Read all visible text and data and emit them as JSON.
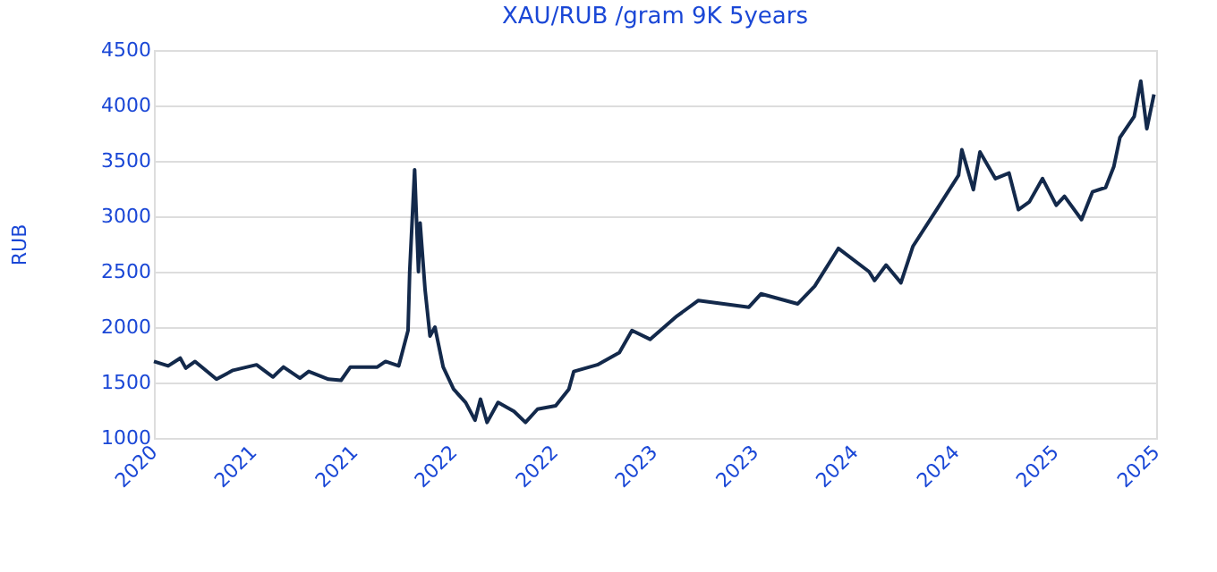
{
  "chart_data": {
    "type": "line",
    "title": "XAU/RUB /gram 9K 5years",
    "ylabel": "RUB",
    "x": [
      "2020-11-01",
      "2020-11-27",
      "2020-12-19",
      "2020-12-29",
      "2021-01-15",
      "2021-02-23",
      "2021-03-25",
      "2021-05-07",
      "2021-06-06",
      "2021-06-25",
      "2021-07-25",
      "2021-08-10",
      "2021-09-15",
      "2021-10-08",
      "2021-10-25",
      "2021-12-13",
      "2021-12-28",
      "2022-01-21",
      "2022-02-07",
      "2022-02-10",
      "2022-02-19",
      "2022-02-26",
      "2022-03-01",
      "2022-03-10",
      "2022-03-19",
      "2022-03-28",
      "2022-04-12",
      "2022-05-01",
      "2022-05-23",
      "2022-06-09",
      "2022-06-19",
      "2022-07-01",
      "2022-07-21",
      "2022-08-19",
      "2022-09-09",
      "2022-10-01",
      "2022-11-03",
      "2022-11-27",
      "2022-12-06",
      "2023-01-18",
      "2023-02-27",
      "2023-03-22",
      "2023-04-24",
      "2023-06-12",
      "2023-07-21",
      "2023-10-21",
      "2023-11-12",
      "2024-01-18",
      "2024-02-18",
      "2024-04-01",
      "2024-05-27",
      "2024-06-06",
      "2024-06-27",
      "2024-07-24",
      "2024-08-15",
      "2024-09-27",
      "2024-11-06",
      "2024-11-12",
      "2024-12-03",
      "2024-12-15",
      "2025-01-12",
      "2025-02-06",
      "2025-02-23",
      "2025-03-15",
      "2025-04-08",
      "2025-05-03",
      "2025-05-18",
      "2025-06-18",
      "2025-07-08",
      "2025-08-01",
      "2025-08-16",
      "2025-08-27",
      "2025-09-22",
      "2025-10-04",
      "2025-10-15",
      "2025-10-28"
    ],
    "series": [
      {
        "color": "#13294b",
        "values": [
          1690,
          1650,
          1720,
          1630,
          1690,
          1530,
          1610,
          1660,
          1550,
          1640,
          1540,
          1600,
          1530,
          1520,
          1640,
          1640,
          1690,
          1650,
          1970,
          2500,
          3420,
          2500,
          2940,
          2340,
          1920,
          2000,
          1640,
          1440,
          1320,
          1160,
          1350,
          1140,
          1320,
          1240,
          1140,
          1260,
          1290,
          1440,
          1600,
          1660,
          1770,
          1970,
          1890,
          2100,
          2240,
          2180,
          2300,
          2210,
          2370,
          2710,
          2500,
          2420,
          2560,
          2400,
          2730,
          3060,
          3370,
          3600,
          3240,
          3580,
          3340,
          3390,
          3060,
          3130,
          3340,
          3100,
          3180,
          2970,
          3220,
          3260,
          3450,
          3710,
          3900,
          4220,
          3790,
          4100
        ]
      }
    ],
    "xlim": [
      "2020-11-01",
      "2025-11-01"
    ],
    "xticks": [
      {
        "value": "2020-11-01",
        "label": "2020"
      },
      {
        "value": "2021-05-01",
        "label": "2021"
      },
      {
        "value": "2021-11-01",
        "label": "2021"
      },
      {
        "value": "2022-05-01",
        "label": "2022"
      },
      {
        "value": "2022-11-01",
        "label": "2022"
      },
      {
        "value": "2023-05-01",
        "label": "2023"
      },
      {
        "value": "2023-11-01",
        "label": "2023"
      },
      {
        "value": "2024-05-01",
        "label": "2024"
      },
      {
        "value": "2024-11-01",
        "label": "2024"
      },
      {
        "value": "2025-05-01",
        "label": "2025"
      },
      {
        "value": "2025-11-01",
        "label": "2025"
      }
    ],
    "ylim": [
      1000,
      4500
    ],
    "yticks": [
      1000,
      1500,
      2000,
      2500,
      3000,
      3500,
      4000,
      4500
    ],
    "grid": "y",
    "marker": "none",
    "line_style": "solid"
  }
}
